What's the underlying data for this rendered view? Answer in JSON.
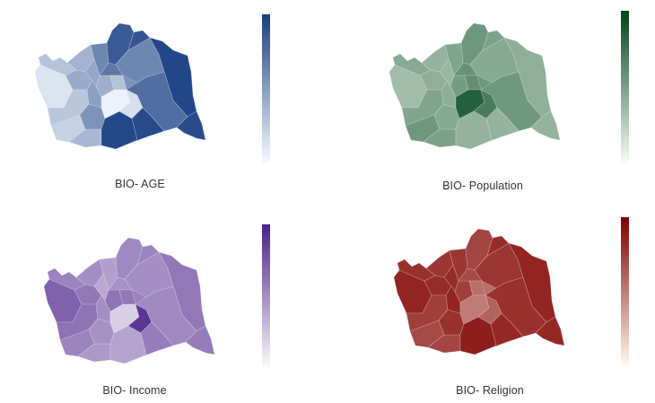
{
  "maps": [
    {
      "id": "age",
      "caption": "BIO- AGE",
      "colors": {
        "low": "#f7fbff",
        "high": "#193e82",
        "stroke": "#ffffff"
      },
      "district_values": [
        0.12,
        0.3,
        0.38,
        0.42,
        0.28,
        0.22,
        0.35,
        0.55,
        0.95,
        0.62,
        0.45,
        0.48,
        0.4,
        0.85,
        0.7,
        0.3,
        0.05,
        0.15,
        0.62,
        0.88,
        0.96,
        0.75,
        0.93
      ]
    },
    {
      "id": "population",
      "caption": "BIO- Population",
      "colors": {
        "low": "#f7fcf5",
        "high": "#00441b",
        "stroke": "#ffffff"
      },
      "district_values": [
        0.35,
        0.45,
        0.4,
        0.42,
        0.48,
        0.55,
        0.5,
        0.45,
        0.4,
        0.48,
        0.38,
        0.42,
        0.52,
        0.55,
        0.58,
        0.6,
        0.85,
        0.7,
        0.45,
        0.5,
        0.42,
        0.55,
        0.4
      ]
    },
    {
      "id": "income",
      "caption": "BIO- Income",
      "colors": {
        "low": "#fcfbfd",
        "high": "#4b2089",
        "stroke": "#ffffff"
      },
      "district_values": [
        0.7,
        0.55,
        0.5,
        0.6,
        0.62,
        0.55,
        0.45,
        0.48,
        0.4,
        0.42,
        0.38,
        0.5,
        0.62,
        0.52,
        0.48,
        0.6,
        0.2,
        0.9,
        0.5,
        0.55,
        0.6,
        0.52,
        0.58
      ]
    },
    {
      "id": "religion",
      "caption": "BIO- Religion",
      "colors": {
        "low": "#fff7ec",
        "high": "#7f0000",
        "stroke": "#ffffff"
      },
      "district_values": [
        0.85,
        0.8,
        0.78,
        0.82,
        0.75,
        0.7,
        0.72,
        0.8,
        0.88,
        0.78,
        0.82,
        0.85,
        0.75,
        0.72,
        0.7,
        0.55,
        0.5,
        0.6,
        0.78,
        0.82,
        0.85,
        0.8,
        0.84
      ]
    }
  ]
}
